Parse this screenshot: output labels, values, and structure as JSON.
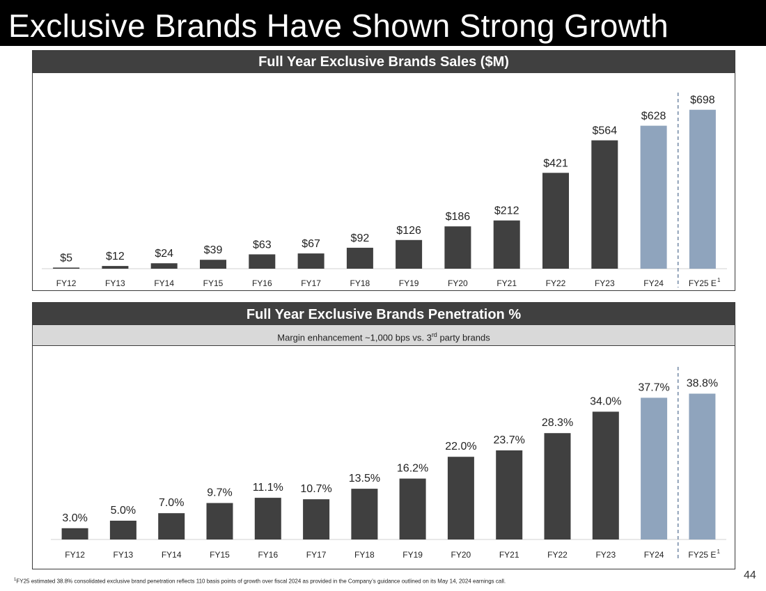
{
  "slide": {
    "title": "Exclusive Brands Have Shown Strong Growth",
    "page_number": "44",
    "footnote_mark": "1",
    "footnote_text": "FY25 estimated 38.8% consolidated exclusive brand penetration reflects 110 basis points of growth over fiscal 2024 as provided in the Company’s guidance outlined on its May 14, 2024 earnings call."
  },
  "colors": {
    "actual_bar": "#404040",
    "estimate_bar": "#8fa4bd",
    "divider": "#6f86a3",
    "header_bg": "#404040",
    "subheader_bg": "#d9d9d9"
  },
  "chart_data": [
    {
      "type": "bar",
      "title": "Full Year Exclusive Brands Sales ($M)",
      "xlabel": "",
      "ylabel": "",
      "ylim": [
        0,
        740
      ],
      "grid": false,
      "categories": [
        "FY12",
        "FY13",
        "FY14",
        "FY15",
        "FY16",
        "FY17",
        "FY18",
        "FY19",
        "FY20",
        "FY21",
        "FY22",
        "FY23",
        "FY24",
        "FY25 E"
      ],
      "category_superscripts": [
        "",
        "",
        "",
        "",
        "",
        "",
        "",
        "",
        "",
        "",
        "",
        "",
        "",
        "1"
      ],
      "values": [
        5,
        12,
        24,
        39,
        63,
        67,
        92,
        126,
        186,
        212,
        421,
        564,
        628,
        698
      ],
      "data_labels": [
        "$5",
        "$12",
        "$24",
        "$39",
        "$63",
        "$67",
        "$92",
        "$126",
        "$186",
        "$212",
        "$421",
        "$564",
        "$628",
        "$698"
      ],
      "bar_style": [
        "actual",
        "actual",
        "actual",
        "actual",
        "actual",
        "actual",
        "actual",
        "actual",
        "actual",
        "actual",
        "actual",
        "actual",
        "highlight",
        "estimate"
      ],
      "divider_before_index": 13
    },
    {
      "type": "bar",
      "title": "Full Year Exclusive Brands Penetration %",
      "subtitle_parts": [
        "Margin enhancement ~1,000 bps vs. 3",
        "rd",
        " party brands"
      ],
      "xlabel": "",
      "ylabel": "",
      "ylim": [
        0,
        40
      ],
      "grid": false,
      "categories": [
        "FY12",
        "FY13",
        "FY14",
        "FY15",
        "FY16",
        "FY17",
        "FY18",
        "FY19",
        "FY20",
        "FY21",
        "FY22",
        "FY23",
        "FY24",
        "FY25 E"
      ],
      "category_superscripts": [
        "",
        "",
        "",
        "",
        "",
        "",
        "",
        "",
        "",
        "",
        "",
        "",
        "",
        "1"
      ],
      "values": [
        3.0,
        5.0,
        7.0,
        9.7,
        11.1,
        10.7,
        13.5,
        16.2,
        22.0,
        23.7,
        28.3,
        34.0,
        37.7,
        38.8
      ],
      "data_labels": [
        "3.0%",
        "5.0%",
        "7.0%",
        "9.7%",
        "11.1%",
        "10.7%",
        "13.5%",
        "16.2%",
        "22.0%",
        "23.7%",
        "28.3%",
        "34.0%",
        "37.7%",
        "38.8%"
      ],
      "bar_style": [
        "actual",
        "actual",
        "actual",
        "actual",
        "actual",
        "actual",
        "actual",
        "actual",
        "actual",
        "actual",
        "actual",
        "actual",
        "highlight",
        "estimate"
      ],
      "divider_before_index": 13
    }
  ]
}
